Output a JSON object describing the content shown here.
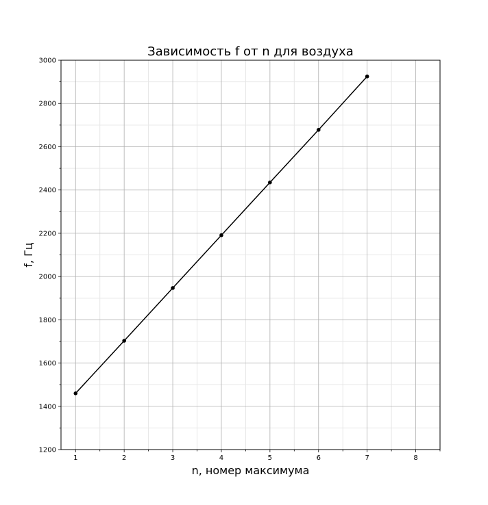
{
  "chart_data": {
    "type": "line",
    "title": "Зависимость f от n для воздуха",
    "xlabel": "n, номер максимума",
    "ylabel": "f, Гц",
    "xlim": [
      0.7,
      8.5
    ],
    "ylim": [
      1200,
      3000
    ],
    "x_ticks": [
      1,
      2,
      3,
      4,
      5,
      6,
      7,
      8
    ],
    "y_ticks": [
      1200,
      1400,
      1600,
      1800,
      2000,
      2200,
      2400,
      2600,
      2800,
      3000
    ],
    "x_minor_step": 0.5,
    "y_minor_step": 100,
    "grid": true,
    "series": [
      {
        "x": [
          1,
          2,
          3,
          4,
          5,
          6,
          7
        ],
        "y": [
          1460,
          1703,
          1947,
          2191,
          2435,
          2678,
          2925
        ],
        "color": "#000000",
        "marker": "circle"
      }
    ]
  }
}
